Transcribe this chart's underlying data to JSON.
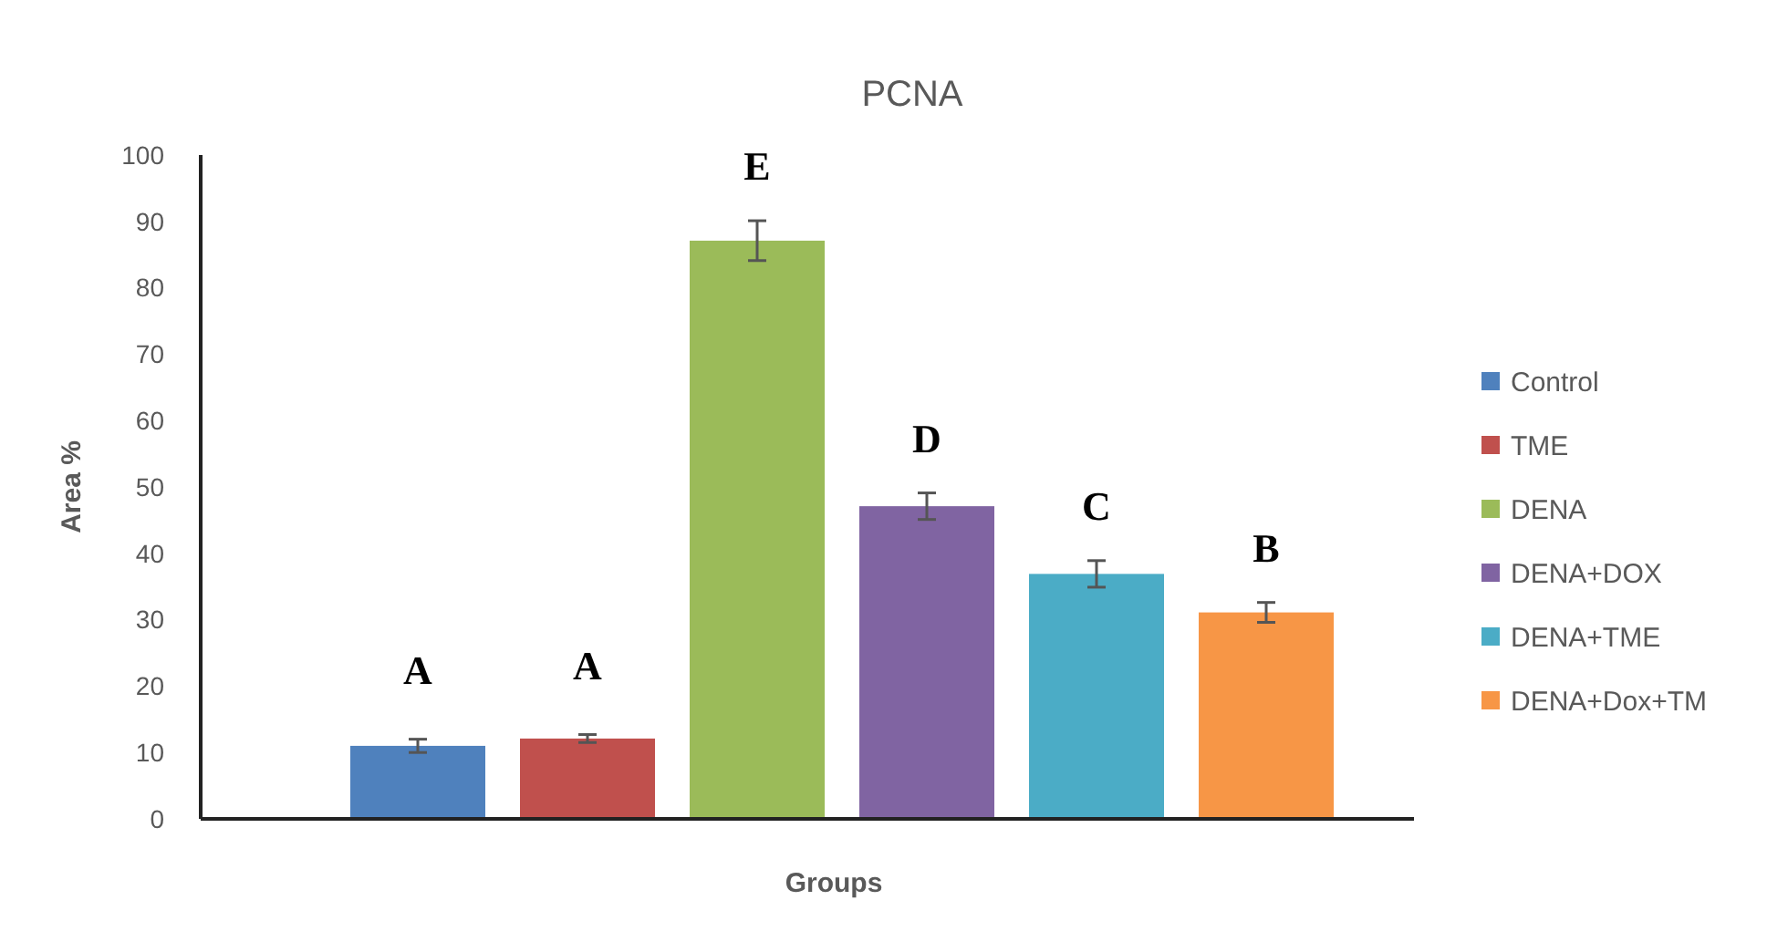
{
  "chart_data": {
    "type": "bar",
    "title": "PCNA",
    "xlabel": "Groups",
    "ylabel": "Area %",
    "categories": [
      null
    ],
    "series": [
      {
        "name": "Control",
        "color": "#4f81bd",
        "values": [
          11
        ],
        "errors": [
          1
        ]
      },
      {
        "name": "TME",
        "color": "#c0504d",
        "values": [
          12.1
        ],
        "errors": [
          0.6
        ]
      },
      {
        "name": "DENA",
        "color": "#9bbb59",
        "values": [
          87.1
        ],
        "errors": [
          3
        ]
      },
      {
        "name": "DENA+DOX",
        "color": "#8064a2",
        "values": [
          47.1
        ],
        "errors": [
          2
        ]
      },
      {
        "name": "DENA+TME",
        "color": "#4bacc6",
        "values": [
          36.9
        ],
        "errors": [
          2
        ]
      },
      {
        "name": "DENA+Dox+TM",
        "color": "#f79646",
        "values": [
          31.1
        ],
        "errors": [
          1.5
        ]
      }
    ],
    "annotations": [
      "A",
      "A",
      "E",
      "D",
      "C",
      "B"
    ],
    "ylim": [
      0,
      100
    ],
    "yticks": [
      0,
      10,
      20,
      30,
      40,
      50,
      60,
      70,
      80,
      90,
      100
    ],
    "legend": "right",
    "grid": false
  }
}
